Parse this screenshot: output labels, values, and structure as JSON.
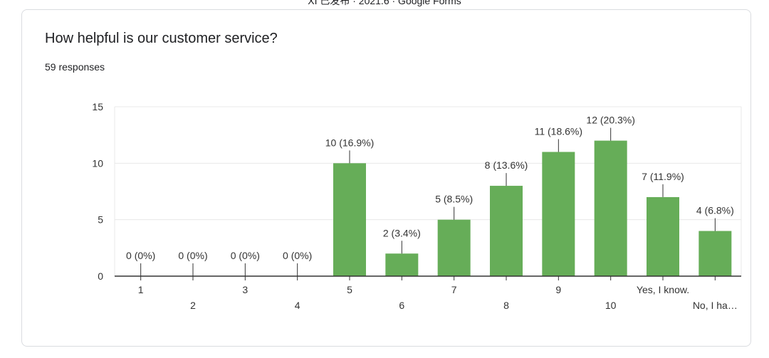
{
  "page": {
    "header": "XI 已发布 · 2021.6 · Google Forms",
    "title": "How helpful is our customer service?",
    "responses": "59 responses"
  },
  "colors": {
    "bar": "#66ad58",
    "grid": "#e8e8e8",
    "axis": "#333333",
    "text": "#202124",
    "label": "#333333"
  },
  "chart_data": {
    "type": "bar",
    "categories": [
      "1",
      "2",
      "3",
      "4",
      "5",
      "6",
      "7",
      "8",
      "9",
      "10",
      "Yes, I know.",
      "No, I ha…"
    ],
    "values": [
      0,
      0,
      0,
      0,
      10,
      2,
      5,
      8,
      11,
      12,
      7,
      4
    ],
    "data_labels": [
      "0 (0%)",
      "0 (0%)",
      "0 (0%)",
      "0 (0%)",
      "10 (16.9%)",
      "2 (3.4%)",
      "5 (8.5%)",
      "8 (13.6%)",
      "11 (18.6%)",
      "12 (20.3%)",
      "7 (11.9%)",
      "4 (6.8%)"
    ],
    "yticks": [
      0,
      5,
      10,
      15
    ],
    "ylim": [
      0,
      15
    ],
    "grid": true,
    "xlabel": "",
    "ylabel": ""
  }
}
